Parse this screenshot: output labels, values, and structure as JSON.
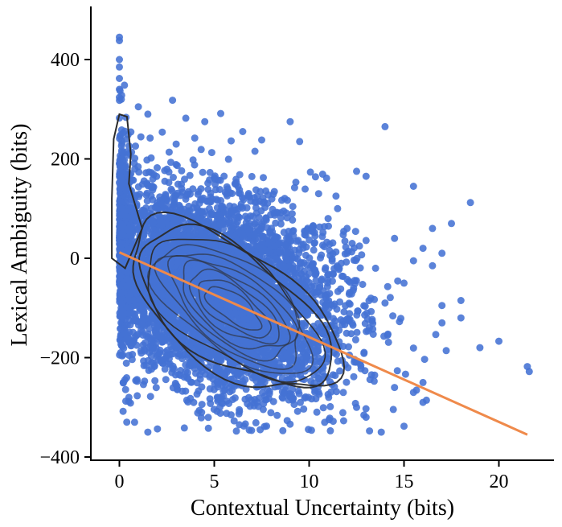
{
  "chart_data": {
    "type": "scatter",
    "title": "",
    "xlabel": "Contextual Uncertainty (bits)",
    "ylabel": "Lexical Ambiguity (bits)",
    "xlim": [
      -1.5,
      23
    ],
    "ylim": [
      -410,
      505
    ],
    "xticks": [
      0,
      5,
      10,
      15,
      20
    ],
    "yticks": [
      -400,
      -200,
      0,
      200,
      400
    ],
    "xtick_labels": [
      "0",
      "5",
      "10",
      "15",
      "20"
    ],
    "ytick_labels": [
      "−400",
      "−200",
      "0",
      "200",
      "400"
    ],
    "grid": false,
    "legend": "none",
    "scatter_color": "#4472d4",
    "point_count_approx": 6000,
    "regression_line": {
      "color": "#ef8a4b",
      "x": [
        0,
        21.5
      ],
      "y": [
        12,
        -355
      ]
    },
    "density_contour_color": "#2b2b2b",
    "density_center": [
      6,
      -100
    ],
    "outlier_points": [
      {
        "x": 0,
        "y": 445
      },
      {
        "x": 0,
        "y": 438
      },
      {
        "x": 0,
        "y": 400
      },
      {
        "x": 0,
        "y": 385
      },
      {
        "x": 0,
        "y": 362
      },
      {
        "x": 0,
        "y": 340
      },
      {
        "x": 0.1,
        "y": 320
      },
      {
        "x": 1,
        "y": 305
      },
      {
        "x": 2.8,
        "y": 318
      },
      {
        "x": 1.5,
        "y": 290
      },
      {
        "x": 3.5,
        "y": 282
      },
      {
        "x": 4.5,
        "y": 275
      },
      {
        "x": 6.5,
        "y": 255
      },
      {
        "x": 7.5,
        "y": 238
      },
      {
        "x": 9.0,
        "y": 275
      },
      {
        "x": 9.5,
        "y": 235
      },
      {
        "x": 14.0,
        "y": 265
      },
      {
        "x": 12.5,
        "y": 175
      },
      {
        "x": 13.0,
        "y": 165
      },
      {
        "x": 15.5,
        "y": 145
      },
      {
        "x": 18.5,
        "y": 112
      },
      {
        "x": 17.5,
        "y": 70
      },
      {
        "x": 16.5,
        "y": 60
      },
      {
        "x": 14.5,
        "y": 40
      },
      {
        "x": 16.0,
        "y": 20
      },
      {
        "x": 17.0,
        "y": 10
      },
      {
        "x": 16.5,
        "y": -15
      },
      {
        "x": 15.5,
        "y": -5
      },
      {
        "x": 15.0,
        "y": -50
      },
      {
        "x": 18.0,
        "y": -85
      },
      {
        "x": 17.0,
        "y": -95
      },
      {
        "x": 19.0,
        "y": -180
      },
      {
        "x": 20.0,
        "y": -167
      },
      {
        "x": 21.5,
        "y": -218
      },
      {
        "x": 21.6,
        "y": -228
      },
      {
        "x": 18.0,
        "y": -120
      },
      {
        "x": 15.5,
        "y": -270
      },
      {
        "x": 16.0,
        "y": -290
      },
      {
        "x": 14.5,
        "y": -260
      },
      {
        "x": 15.0,
        "y": -338
      },
      {
        "x": 13.8,
        "y": -350
      },
      {
        "x": 13.0,
        "y": -320
      },
      {
        "x": 12.5,
        "y": -300
      },
      {
        "x": 16.0,
        "y": -250
      },
      {
        "x": 17.0,
        "y": -130
      },
      {
        "x": 14.0,
        "y": -90
      },
      {
        "x": 13.5,
        "y": -20
      },
      {
        "x": 12.0,
        "y": 60
      },
      {
        "x": 11.5,
        "y": 100
      },
      {
        "x": 10.5,
        "y": 130
      },
      {
        "x": 11.0,
        "y": 80
      },
      {
        "x": 12.0,
        "y": 10
      },
      {
        "x": 0.8,
        "y": -330
      },
      {
        "x": 1.5,
        "y": -350
      },
      {
        "x": 0.5,
        "y": -280
      },
      {
        "x": 0.2,
        "y": -250
      }
    ]
  }
}
